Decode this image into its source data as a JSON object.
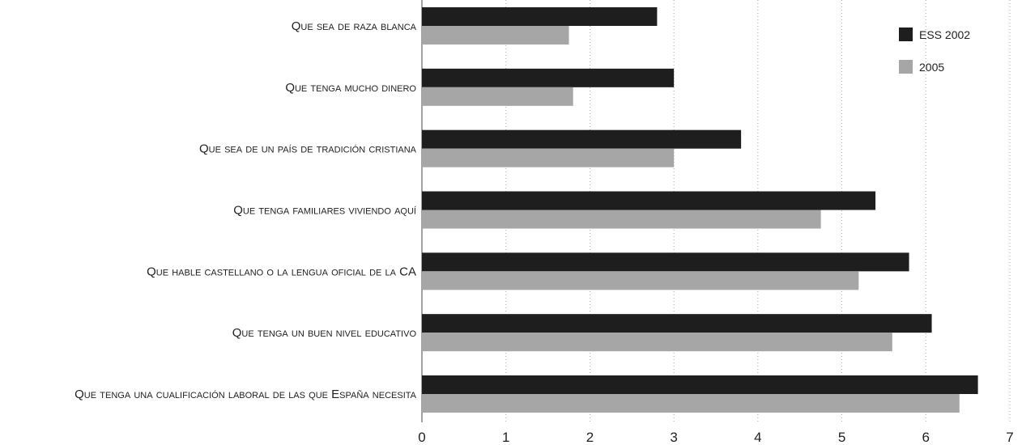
{
  "chart_data": {
    "type": "bar",
    "orientation": "horizontal",
    "categories": [
      "Que sea de raza blanca",
      "Que tenga mucho dinero",
      "Que sea de un país de tradición cristiana",
      "Que tenga familiares viviendo aquí",
      "Que hable castellano o la lengua oficial de la CA",
      "Que tenga un buen nivel educativo",
      "Que tenga una cualificación laboral de las que España necesita"
    ],
    "series": [
      {
        "name": "ESS 2002",
        "color": "#1e1e1e",
        "values": [
          2.8,
          3.0,
          3.8,
          5.4,
          5.8,
          6.07,
          6.62
        ]
      },
      {
        "name": "2005",
        "color": "#a6a6a6",
        "values": [
          1.75,
          1.8,
          3.0,
          4.75,
          5.2,
          5.6,
          6.4
        ]
      }
    ],
    "xlim": [
      0,
      7
    ],
    "xticks": [
      "0",
      "1",
      "2",
      "3",
      "4",
      "5",
      "6",
      "7"
    ],
    "grid": true,
    "legend_position": "top-right"
  }
}
